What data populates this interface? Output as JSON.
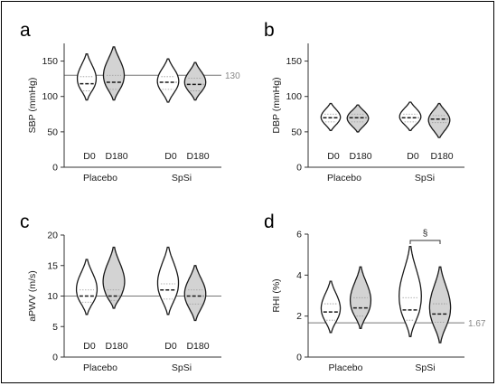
{
  "colors": {
    "placebo_fill": "#ffffff",
    "spsi_fill": "#d3d3d3",
    "stroke": "#1a1a1a",
    "refline": "#777777",
    "axis": "#333333"
  },
  "chart_data": [
    {
      "type": "violin",
      "panel": "a",
      "ylabel": "SBP (mmHg)",
      "ylim": [
        0,
        175
      ],
      "yticks": [
        0,
        50,
        100,
        150
      ],
      "ref": 130,
      "ref_label": "130",
      "timepoints": [
        "D0",
        "D180",
        "D0",
        "D180"
      ],
      "groups": [
        "Placebo",
        "SpSi"
      ],
      "violins": [
        {
          "min": 95,
          "max": 160,
          "median": 118,
          "q1": 108,
          "q3": 128,
          "width": 0.9,
          "bulge": 0.4
        },
        {
          "min": 95,
          "max": 170,
          "median": 120,
          "q1": 110,
          "q3": 130,
          "width": 1.0,
          "bulge": 0.45
        },
        {
          "min": 92,
          "max": 153,
          "median": 120,
          "q1": 110,
          "q3": 128,
          "width": 1.0,
          "bulge": 0.45
        },
        {
          "min": 95,
          "max": 148,
          "median": 117,
          "q1": 108,
          "q3": 126,
          "width": 1.0,
          "bulge": 0.4
        }
      ]
    },
    {
      "type": "violin",
      "panel": "b",
      "ylabel": "DBP (mmHg)",
      "ylim": [
        0,
        175
      ],
      "yticks": [
        0,
        50,
        100,
        150
      ],
      "timepoints": [
        "D0",
        "D180",
        "D0",
        "D180"
      ],
      "groups": [
        "Placebo",
        "SpSi"
      ],
      "violins": [
        {
          "min": 52,
          "max": 90,
          "median": 70,
          "q1": 64,
          "q3": 75,
          "width": 0.9,
          "bulge": 0.5
        },
        {
          "min": 50,
          "max": 88,
          "median": 70,
          "q1": 64,
          "q3": 75,
          "width": 1.0,
          "bulge": 0.5
        },
        {
          "min": 52,
          "max": 92,
          "median": 70,
          "q1": 64,
          "q3": 75,
          "width": 1.0,
          "bulge": 0.5
        },
        {
          "min": 42,
          "max": 90,
          "median": 68,
          "q1": 63,
          "q3": 73,
          "width": 1.0,
          "bulge": 0.55
        }
      ]
    },
    {
      "type": "violin",
      "panel": "c",
      "ylabel": "aPWV (m/s)",
      "ylim": [
        0,
        20
      ],
      "yticks": [
        0,
        5,
        10,
        15,
        20
      ],
      "ref": 10,
      "timepoints": [
        "D0",
        "D180",
        "D0",
        "D180"
      ],
      "groups": [
        "Placebo",
        "SpSi"
      ],
      "violins": [
        {
          "min": 7,
          "max": 16,
          "median": 10,
          "q1": 9,
          "q3": 11,
          "width": 1.0,
          "bulge": 0.35
        },
        {
          "min": 8,
          "max": 18,
          "median": 10,
          "q1": 9.3,
          "q3": 11,
          "width": 1.1,
          "bulge": 0.3
        },
        {
          "min": 7,
          "max": 18,
          "median": 11,
          "q1": 9.5,
          "q3": 12,
          "width": 1.0,
          "bulge": 0.4
        },
        {
          "min": 6,
          "max": 15,
          "median": 10,
          "q1": 8.7,
          "q3": 11,
          "width": 1.0,
          "bulge": 0.38
        }
      ]
    },
    {
      "type": "violin",
      "panel": "d",
      "ylabel": "RHI (%)",
      "ylim": [
        0,
        6
      ],
      "yticks": [
        0,
        2,
        4,
        6
      ],
      "ref": 1.67,
      "ref_label": "1.67",
      "annotation": "§",
      "groups": [
        "Placebo",
        "SpSi"
      ],
      "violins": [
        {
          "min": 1.2,
          "max": 3.7,
          "median": 2.2,
          "q1": 1.8,
          "q3": 2.6,
          "width": 0.9,
          "bulge": 0.35
        },
        {
          "min": 1.4,
          "max": 4.4,
          "median": 2.4,
          "q1": 2.0,
          "q3": 2.9,
          "width": 1.0,
          "bulge": 0.3
        },
        {
          "min": 1.0,
          "max": 5.4,
          "median": 2.3,
          "q1": 1.8,
          "q3": 2.9,
          "width": 1.1,
          "bulge": 0.25
        },
        {
          "min": 0.7,
          "max": 4.4,
          "median": 2.1,
          "q1": 1.7,
          "q3": 2.6,
          "width": 1.0,
          "bulge": 0.3
        }
      ]
    }
  ]
}
